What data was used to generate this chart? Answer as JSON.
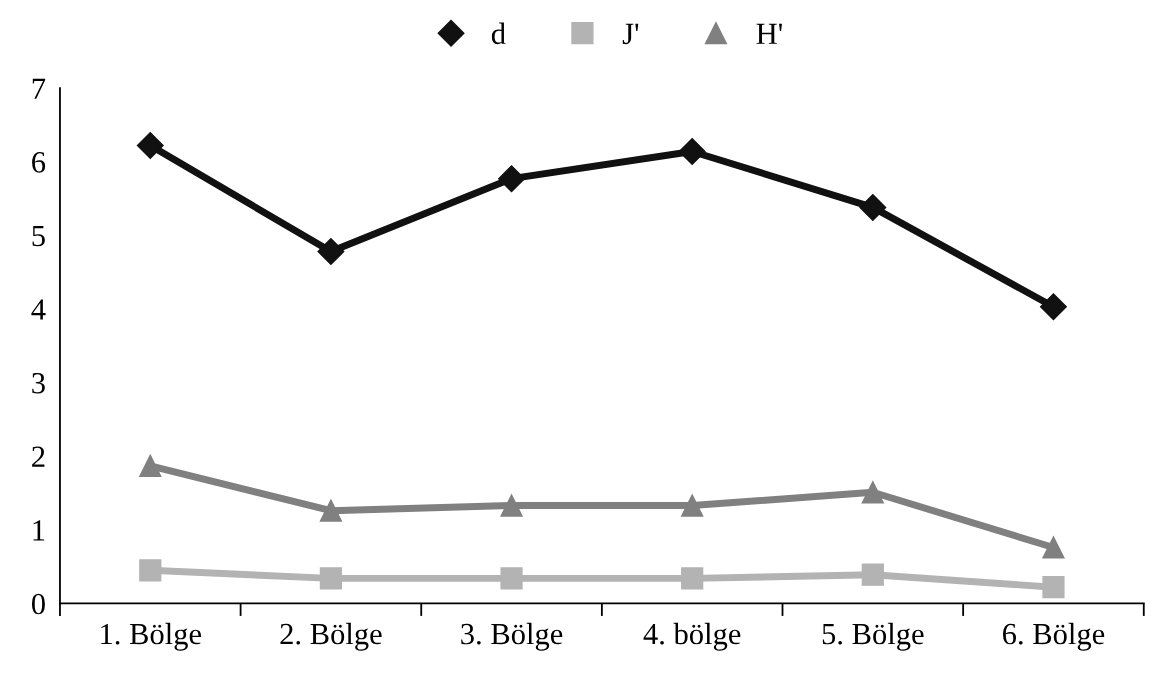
{
  "chart_data": {
    "type": "line",
    "categories": [
      "1. Bölge",
      "2. Bölge",
      "3. Bölge",
      "4. bölge",
      "5. Bölge",
      "6. Bölge"
    ],
    "series": [
      {
        "name": "d",
        "color": "#111111",
        "marker": "diamond",
        "values": [
          6.22,
          4.78,
          5.77,
          6.14,
          5.38,
          4.03
        ]
      },
      {
        "name": "J'",
        "color": "#b3b3b3",
        "marker": "square",
        "values": [
          0.45,
          0.34,
          0.34,
          0.34,
          0.39,
          0.22
        ]
      },
      {
        "name": "H'",
        "color": "#808080",
        "marker": "triangle",
        "values": [
          1.87,
          1.26,
          1.33,
          1.33,
          1.51,
          0.76
        ]
      }
    ],
    "ylim": [
      0,
      7
    ],
    "yticks": [
      0,
      1,
      2,
      3,
      4,
      5,
      6,
      7
    ],
    "grid": false,
    "legend": "top",
    "line_style": "solid"
  }
}
